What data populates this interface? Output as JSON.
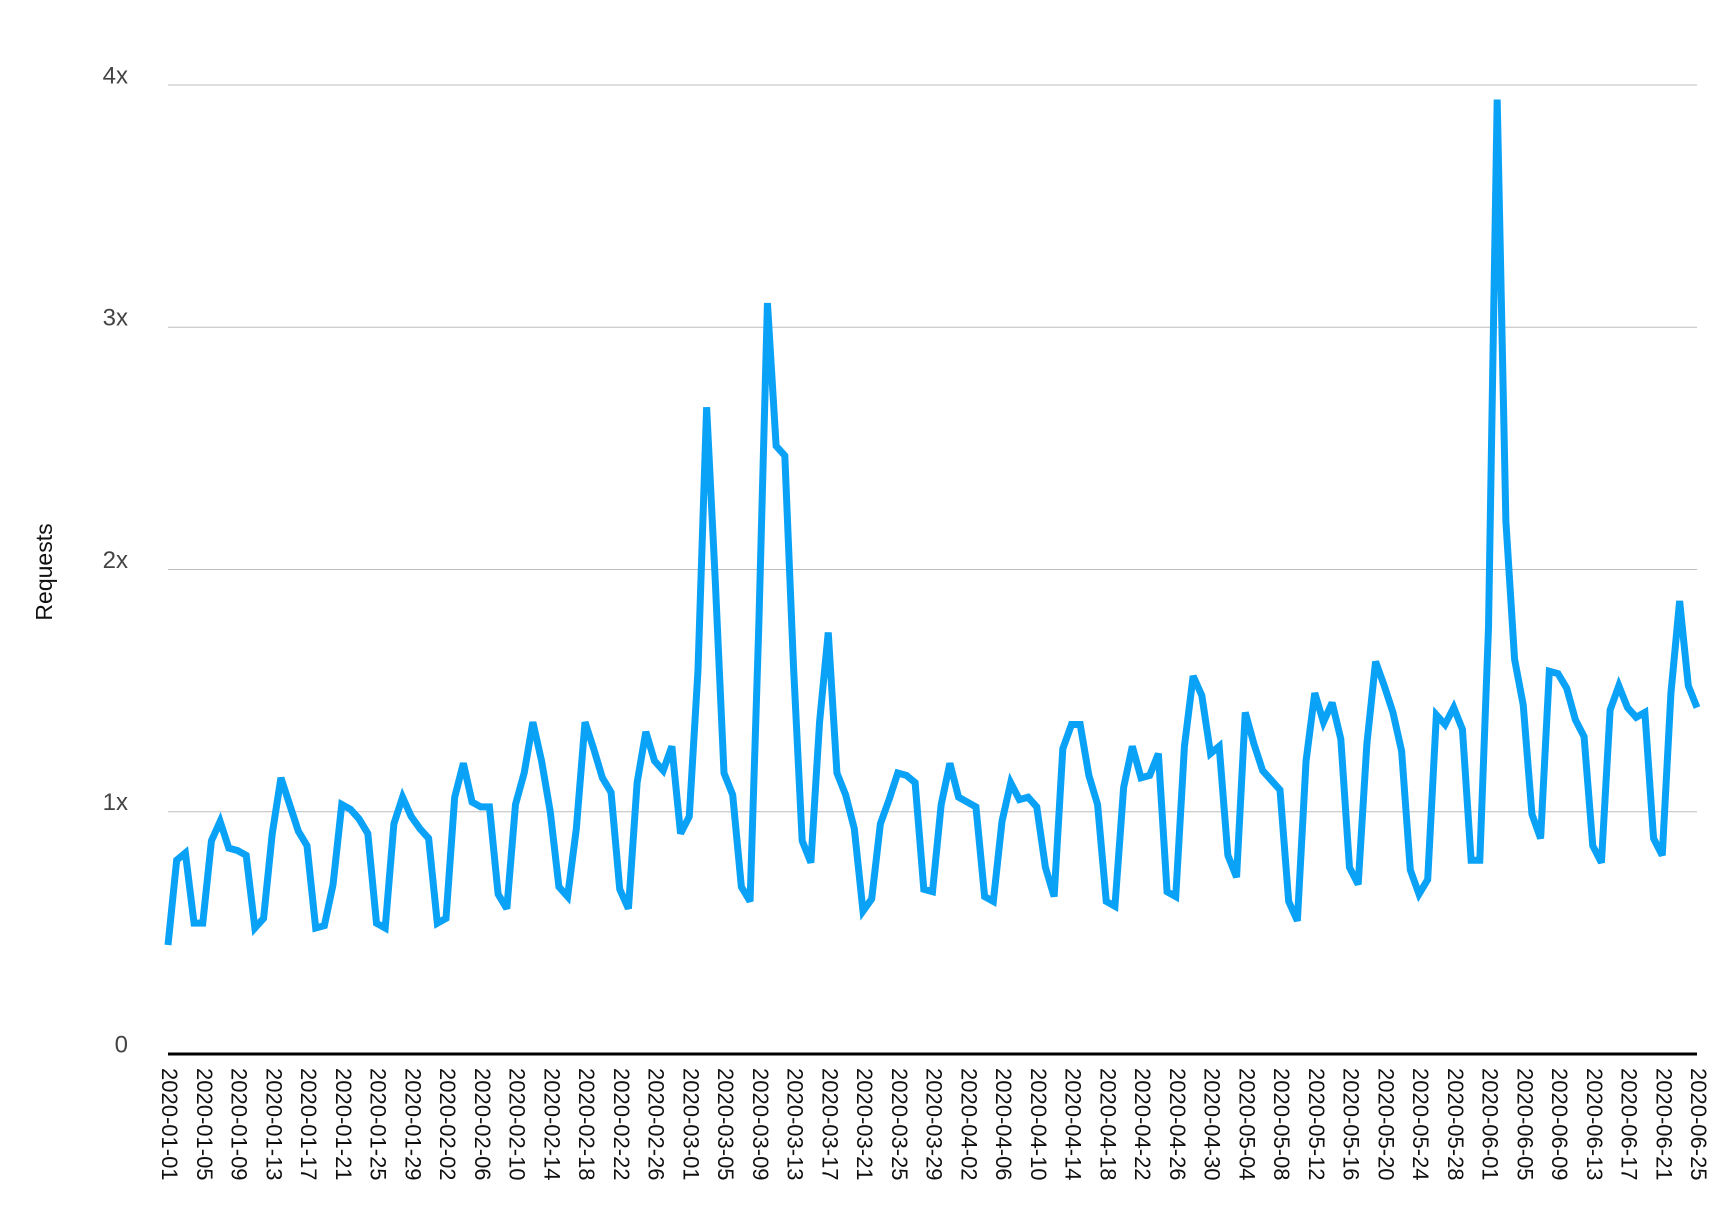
{
  "chart_data": {
    "type": "line",
    "y_label": "Requests",
    "categories": [
      "2020-01-01",
      null,
      null,
      null,
      "2020-01-05",
      null,
      null,
      null,
      "2020-01-09",
      null,
      null,
      null,
      "2020-01-13",
      null,
      null,
      null,
      "2020-01-17",
      null,
      null,
      null,
      "2020-01-21",
      null,
      null,
      null,
      "2020-01-25",
      null,
      null,
      null,
      "2020-01-29",
      null,
      null,
      null,
      "2020-02-02",
      null,
      null,
      null,
      "2020-02-06",
      null,
      null,
      null,
      "2020-02-10",
      null,
      null,
      null,
      "2020-02-14",
      null,
      null,
      null,
      "2020-02-18",
      null,
      null,
      null,
      "2020-02-22",
      null,
      null,
      null,
      "2020-02-26",
      null,
      null,
      null,
      "2020-03-01",
      null,
      null,
      null,
      "2020-03-05",
      null,
      null,
      null,
      "2020-03-09",
      null,
      null,
      null,
      "2020-03-13",
      null,
      null,
      null,
      "2020-03-17",
      null,
      null,
      null,
      "2020-03-21",
      null,
      null,
      null,
      "2020-03-25",
      null,
      null,
      null,
      "2020-03-29",
      null,
      null,
      null,
      "2020-04-02",
      null,
      null,
      null,
      "2020-04-06",
      null,
      null,
      null,
      "2020-04-10",
      null,
      null,
      null,
      "2020-04-14",
      null,
      null,
      null,
      "2020-04-18",
      null,
      null,
      null,
      "2020-04-22",
      null,
      null,
      null,
      "2020-04-26",
      null,
      null,
      null,
      "2020-04-30",
      null,
      null,
      null,
      "2020-05-04",
      null,
      null,
      null,
      "2020-05-08",
      null,
      null,
      null,
      "2020-05-12",
      null,
      null,
      null,
      "2020-05-16",
      null,
      null,
      null,
      "2020-05-20",
      null,
      null,
      null,
      "2020-05-24",
      null,
      null,
      null,
      "2020-05-28",
      null,
      null,
      null,
      "2020-06-01",
      null,
      null,
      null,
      "2020-06-05",
      null,
      null,
      null,
      "2020-06-09",
      null,
      null,
      null,
      "2020-06-13",
      null,
      null,
      null,
      "2020-06-17",
      null,
      null,
      null,
      "2020-06-21",
      null,
      null,
      null,
      "2020-06-25"
    ],
    "series": [
      {
        "color": "#0aa2f7",
        "values": [
          0.45,
          0.8,
          0.83,
          0.54,
          0.54,
          0.88,
          0.96,
          0.85,
          0.84,
          0.82,
          0.52,
          0.56,
          0.91,
          1.14,
          1.03,
          0.92,
          0.86,
          0.52,
          0.53,
          0.7,
          1.03,
          1.01,
          0.97,
          0.91,
          0.54,
          0.52,
          0.95,
          1.06,
          0.98,
          0.93,
          0.89,
          0.54,
          0.56,
          1.06,
          1.2,
          1.04,
          1.02,
          1.02,
          0.66,
          0.6,
          1.03,
          1.16,
          1.37,
          1.21,
          1.0,
          0.69,
          0.65,
          0.93,
          1.37,
          1.26,
          1.14,
          1.08,
          0.68,
          0.6,
          1.12,
          1.33,
          1.21,
          1.17,
          1.27,
          0.91,
          0.98,
          1.58,
          2.67,
          1.95,
          1.16,
          1.07,
          0.69,
          0.63,
          1.76,
          3.1,
          2.51,
          2.47,
          1.6,
          0.88,
          0.79,
          1.37,
          1.74,
          1.16,
          1.07,
          0.93,
          0.59,
          0.64,
          0.95,
          1.05,
          1.16,
          1.15,
          1.12,
          0.68,
          0.67,
          1.03,
          1.2,
          1.06,
          1.04,
          1.02,
          0.65,
          0.63,
          0.96,
          1.12,
          1.05,
          1.06,
          1.02,
          0.77,
          0.65,
          1.26,
          1.36,
          1.36,
          1.15,
          1.03,
          0.63,
          0.61,
          1.1,
          1.27,
          1.14,
          1.15,
          1.24,
          0.67,
          0.65,
          1.27,
          1.56,
          1.48,
          1.24,
          1.27,
          0.82,
          0.73,
          1.41,
          1.28,
          1.17,
          1.13,
          1.09,
          0.63,
          0.55,
          1.21,
          1.49,
          1.37,
          1.45,
          1.3,
          0.77,
          0.7,
          1.28,
          1.62,
          1.52,
          1.41,
          1.25,
          0.76,
          0.66,
          0.72,
          1.4,
          1.36,
          1.43,
          1.34,
          0.8,
          0.8,
          1.76,
          3.94,
          2.2,
          1.63,
          1.44,
          0.99,
          0.89,
          1.58,
          1.57,
          1.51,
          1.38,
          1.31,
          0.86,
          0.79,
          1.42,
          1.52,
          1.43,
          1.39,
          1.41,
          0.89,
          0.82,
          1.49,
          1.87,
          1.52,
          1.43
        ]
      }
    ],
    "ylim": [
      0,
      4
    ],
    "yticks": [
      0,
      {
        "value": 1,
        "label": "1x"
      },
      {
        "value": 2,
        "label": "2x"
      },
      {
        "value": 3,
        "label": "3x"
      },
      {
        "value": 4,
        "label": "4x"
      }
    ],
    "grid": true
  }
}
